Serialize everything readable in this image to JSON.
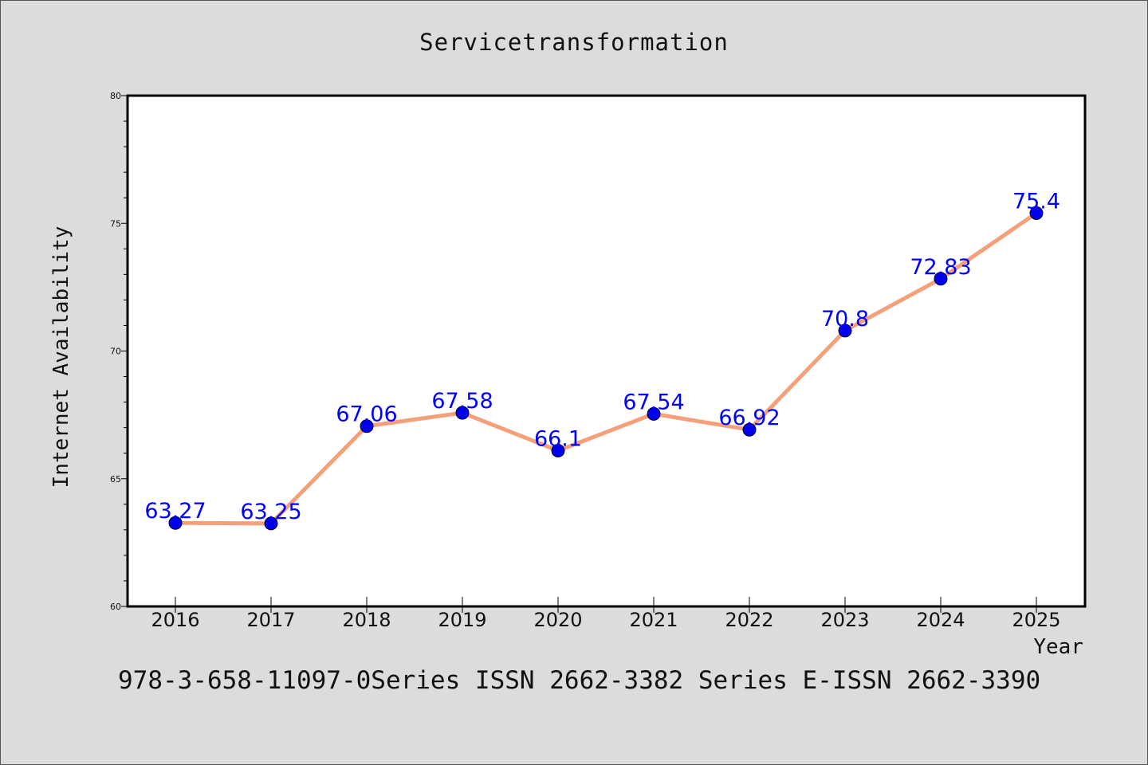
{
  "chart_data": {
    "type": "line",
    "title": "Servicetransformation",
    "xlabel": "Year",
    "ylabel": "Internet Availability",
    "categories": [
      "2016",
      "2017",
      "2018",
      "2019",
      "2020",
      "2021",
      "2022",
      "2023",
      "2024",
      "2025"
    ],
    "values": [
      63.27,
      63.25,
      67.06,
      67.58,
      66.1,
      67.54,
      66.92,
      70.8,
      72.83,
      75.4
    ],
    "data_labels": [
      "63.27",
      "63.25",
      "67.06",
      "67.58",
      "66.1",
      "67.54",
      "66.92",
      "70.8",
      "72.83",
      "75.4"
    ],
    "ylim": [
      60,
      80
    ],
    "yticks": [
      60,
      65,
      70,
      75,
      80
    ],
    "grid": false,
    "line_color": "#f4a07a",
    "marker_color": "#0000ee",
    "label_color": "#0000ff"
  },
  "footer": {
    "text": "978-3-658-11097-0Series ISSN 2662-3382 Series E-ISSN 2662-3390"
  }
}
